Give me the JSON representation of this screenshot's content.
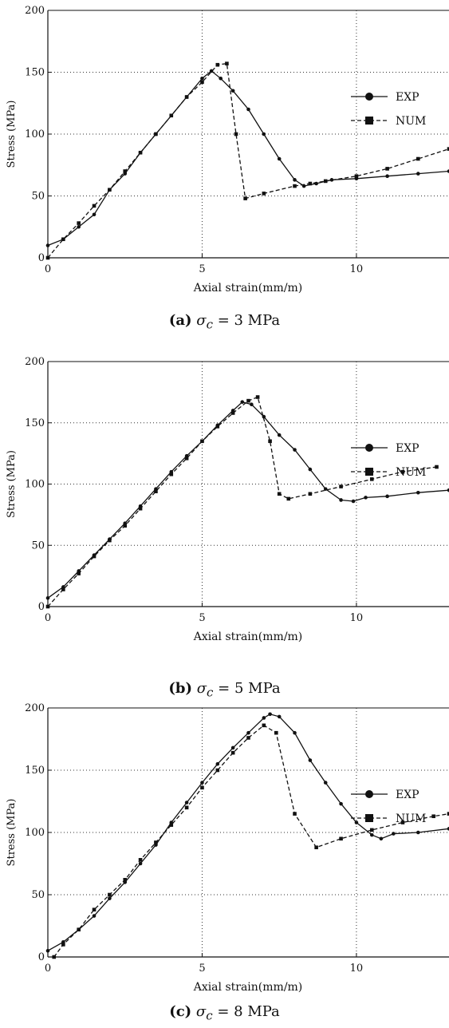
{
  "chart_data": [
    {
      "type": "line",
      "xlabel": "Axial strain(mm/m)",
      "ylabel": "Stress (MPa)",
      "xlim": [
        0,
        13
      ],
      "ylim": [
        0,
        200
      ],
      "xticks": [
        0,
        5,
        10
      ],
      "yticks": [
        0,
        50,
        100,
        150,
        200
      ],
      "grid": "dotted",
      "legend": "right",
      "caption": {
        "letter": "(a)",
        "math": "σ",
        "sub": "c",
        "rest": " = 3 MPa"
      },
      "series": [
        {
          "name": "EXP",
          "marker": "circle",
          "line": "solid",
          "x": [
            0,
            0.5,
            1.0,
            1.5,
            2.0,
            2.5,
            3.0,
            3.5,
            4.0,
            4.5,
            5.0,
            5.3,
            5.6,
            6.0,
            6.5,
            7.0,
            7.5,
            8.0,
            8.3,
            8.7,
            9.2,
            10.0,
            11.0,
            12.0,
            13.0
          ],
          "y": [
            10,
            15,
            25,
            35,
            55,
            68,
            85,
            100,
            115,
            130,
            145,
            151,
            145,
            135,
            120,
            100,
            80,
            63,
            58,
            60,
            63,
            64,
            66,
            68,
            70
          ]
        },
        {
          "name": "NUM",
          "marker": "square",
          "line": "dashed",
          "x": [
            0,
            0.5,
            1.0,
            1.5,
            2.0,
            2.5,
            3.0,
            3.5,
            4.0,
            4.5,
            5.0,
            5.5,
            5.8,
            6.1,
            6.4,
            7.0,
            8.0,
            8.5,
            9.0,
            10.0,
            11.0,
            12.0,
            13.0
          ],
          "y": [
            0,
            15,
            28,
            42,
            55,
            70,
            85,
            100,
            115,
            130,
            142,
            156,
            157,
            100,
            48,
            52,
            58,
            60,
            62,
            66,
            72,
            80,
            88
          ]
        }
      ]
    },
    {
      "type": "line",
      "xlabel": "Axial strain(mm/m)",
      "ylabel": "Stress (MPa)",
      "xlim": [
        0,
        13
      ],
      "ylim": [
        0,
        200
      ],
      "xticks": [
        0,
        5,
        10
      ],
      "yticks": [
        0,
        50,
        100,
        150,
        200
      ],
      "grid": "dotted",
      "legend": "right",
      "caption": {
        "letter": "(b)",
        "math": "σ",
        "sub": "c",
        "rest": " = 5 MPa"
      },
      "series": [
        {
          "name": "EXP",
          "marker": "circle",
          "line": "solid",
          "x": [
            0,
            0.5,
            1.0,
            1.5,
            2.0,
            2.5,
            3.0,
            3.5,
            4.0,
            4.5,
            5.0,
            5.5,
            6.0,
            6.3,
            6.6,
            7.0,
            7.5,
            8.0,
            8.5,
            9.0,
            9.5,
            9.9,
            10.3,
            11.0,
            12.0,
            13.0
          ],
          "y": [
            7,
            16,
            29,
            42,
            55,
            68,
            82,
            96,
            110,
            123,
            135,
            148,
            160,
            167,
            165,
            155,
            140,
            128,
            112,
            96,
            87,
            86,
            89,
            90,
            93,
            95
          ]
        },
        {
          "name": "NUM",
          "marker": "square",
          "line": "dashed",
          "x": [
            0,
            0.5,
            1.0,
            1.5,
            2.0,
            2.5,
            3.0,
            3.5,
            4.0,
            4.5,
            5.0,
            5.5,
            6.0,
            6.5,
            6.8,
            7.2,
            7.5,
            7.8,
            8.5,
            9.5,
            10.5,
            11.5,
            12.6
          ],
          "y": [
            0,
            14,
            27,
            41,
            54,
            66,
            80,
            94,
            108,
            121,
            135,
            147,
            158,
            168,
            171,
            135,
            92,
            88,
            92,
            98,
            104,
            110,
            114
          ]
        }
      ]
    },
    {
      "type": "line",
      "xlabel": "Axial strain(mm/m)",
      "ylabel": "Stress (MPa)",
      "xlim": [
        0,
        13
      ],
      "ylim": [
        0,
        200
      ],
      "xticks": [
        0,
        5,
        10
      ],
      "yticks": [
        0,
        50,
        100,
        150,
        200
      ],
      "grid": "dotted",
      "legend": "right",
      "caption": {
        "letter": "(c)",
        "math": "σ",
        "sub": "c",
        "rest": " = 8 MPa"
      },
      "series": [
        {
          "name": "EXP",
          "marker": "circle",
          "line": "solid",
          "x": [
            0,
            0.5,
            1.0,
            1.5,
            2.0,
            2.5,
            3.0,
            3.5,
            4.0,
            4.5,
            5.0,
            5.5,
            6.0,
            6.5,
            7.0,
            7.2,
            7.5,
            8.0,
            8.5,
            9.0,
            9.5,
            10.0,
            10.5,
            10.8,
            11.2,
            12.0,
            13.0
          ],
          "y": [
            5,
            12,
            22,
            33,
            47,
            60,
            75,
            90,
            108,
            124,
            140,
            155,
            168,
            180,
            192,
            195,
            193,
            180,
            158,
            140,
            123,
            108,
            98,
            95,
            99,
            100,
            103
          ]
        },
        {
          "name": "NUM",
          "marker": "square",
          "line": "dashed",
          "x": [
            0.2,
            0.5,
            1.0,
            1.5,
            2.0,
            2.5,
            3.0,
            3.5,
            4.0,
            4.5,
            5.0,
            5.5,
            6.0,
            6.5,
            7.0,
            7.4,
            8.0,
            8.7,
            9.5,
            10.5,
            11.5,
            12.5,
            13.0
          ],
          "y": [
            0,
            10,
            22,
            38,
            50,
            62,
            78,
            92,
            106,
            120,
            136,
            150,
            164,
            176,
            186,
            180,
            115,
            88,
            95,
            102,
            108,
            113,
            115
          ]
        }
      ]
    }
  ]
}
